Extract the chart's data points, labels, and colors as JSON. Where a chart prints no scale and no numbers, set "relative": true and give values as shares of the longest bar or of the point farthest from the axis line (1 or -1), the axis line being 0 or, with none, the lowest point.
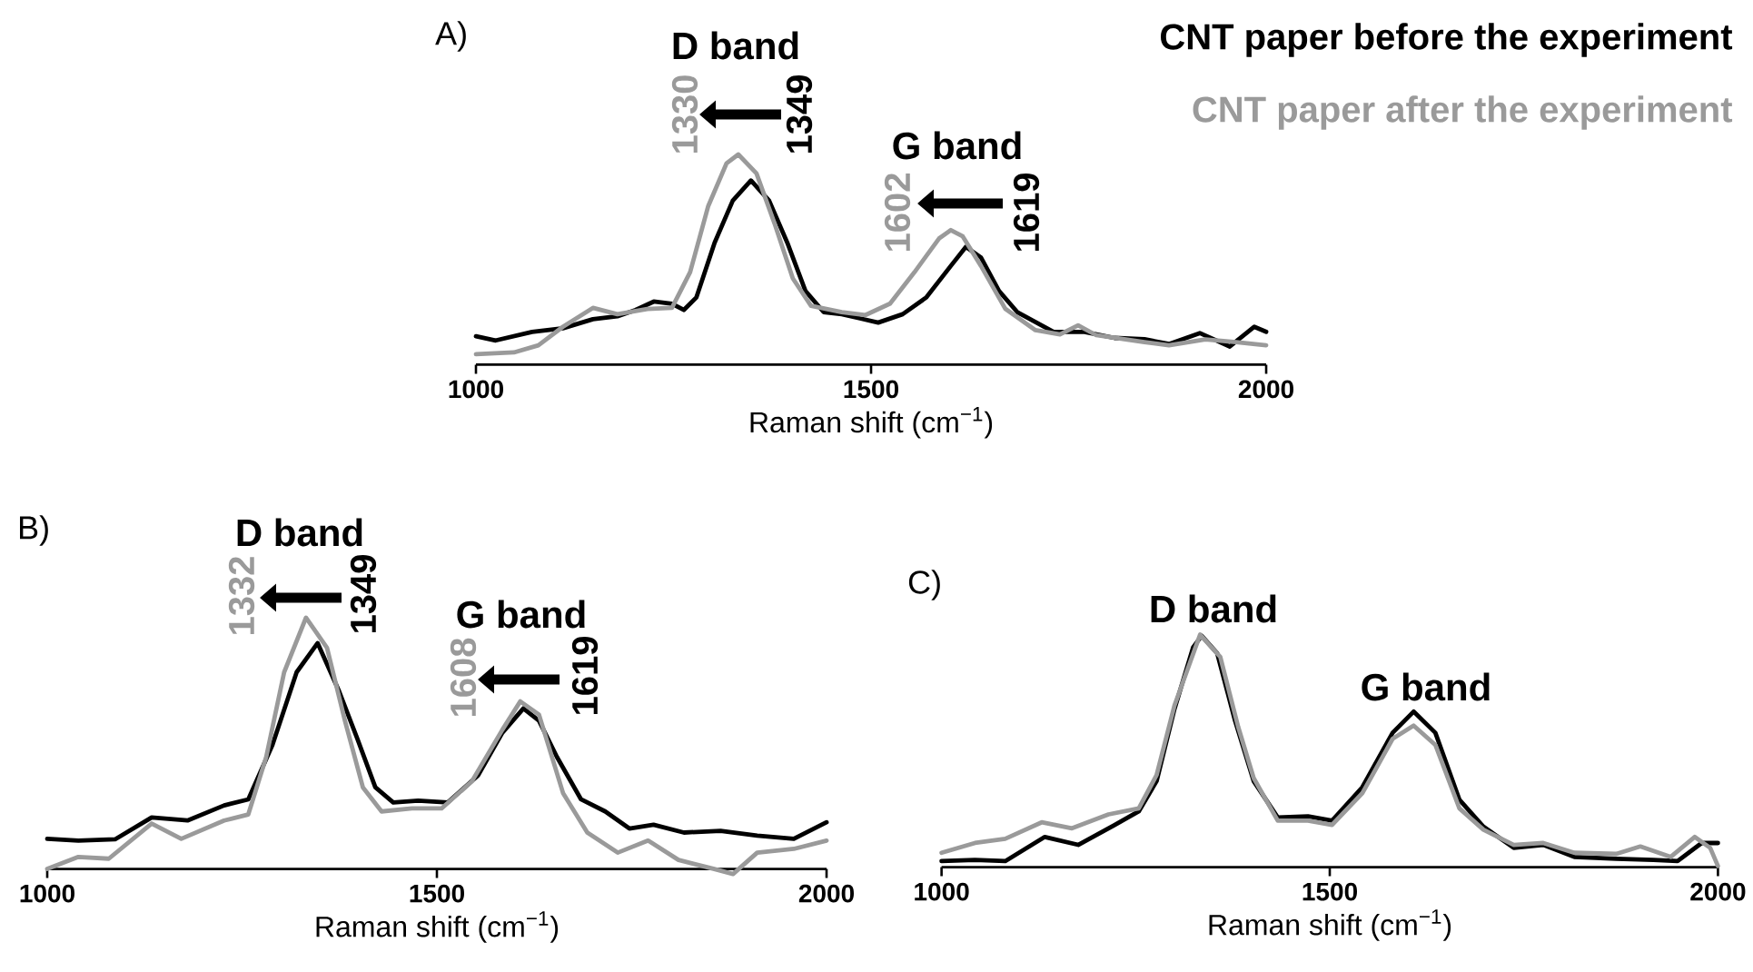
{
  "chart_data": [
    {
      "type": "line",
      "title": "A)",
      "xlabel": "Raman shift (cm$^{−1}$)",
      "xlim": [
        1000,
        2000
      ],
      "xticks": [
        1000,
        1500,
        2000
      ],
      "relative": true,
      "legend": "top right",
      "annotations": [
        "D band",
        "1330",
        "1349",
        "G band",
        "1602",
        "1619"
      ],
      "series": [
        {
          "name": "CNT paper before the experiment",
          "color": "#000000",
          "x": [
            1000,
            1025,
            1071,
            1110,
            1148,
            1179,
            1202,
            1225,
            1248,
            1263,
            1279,
            1302,
            1325,
            1348,
            1371,
            1394,
            1417,
            1440,
            1463,
            1486,
            1509,
            1540,
            1570,
            1601,
            1620,
            1639,
            1662,
            1685,
            1731,
            1770,
            1808,
            1846,
            1877,
            1916,
            1954,
            1985,
            2000
          ],
          "values": [
            0.135,
            0.115,
            0.156,
            0.173,
            0.216,
            0.23,
            0.26,
            0.3,
            0.29,
            0.26,
            0.32,
            0.58,
            0.78,
            0.876,
            0.78,
            0.58,
            0.35,
            0.25,
            0.24,
            0.22,
            0.2,
            0.24,
            0.32,
            0.47,
            0.56,
            0.51,
            0.35,
            0.25,
            0.156,
            0.156,
            0.127,
            0.121,
            0.098,
            0.15,
            0.086,
            0.18,
            0.156
          ]
        },
        {
          "name": "CNT paper after the experiment",
          "color": "#9a9a9a",
          "x": [
            1000,
            1048,
            1079,
            1110,
            1148,
            1179,
            1217,
            1248,
            1271,
            1294,
            1317,
            1332,
            1355,
            1378,
            1401,
            1424,
            1463,
            1493,
            1524,
            1555,
            1586,
            1601,
            1616,
            1639,
            1670,
            1708,
            1739,
            1762,
            1785,
            1846,
            1877,
            1923,
            1962,
            2000
          ],
          "values": [
            0.05,
            0.058,
            0.092,
            0.18,
            0.27,
            0.24,
            0.265,
            0.27,
            0.44,
            0.755,
            0.957,
            1.0,
            0.91,
            0.67,
            0.41,
            0.28,
            0.25,
            0.236,
            0.29,
            0.44,
            0.6,
            0.64,
            0.61,
            0.47,
            0.265,
            0.164,
            0.144,
            0.187,
            0.14,
            0.107,
            0.092,
            0.12,
            0.107,
            0.092
          ]
        }
      ]
    },
    {
      "type": "line",
      "title": "B)",
      "xlabel": "Raman shift (cm$^{−1}$)",
      "xlim": [
        1000,
        2000
      ],
      "xticks": [
        1000,
        1500,
        2000
      ],
      "relative": true,
      "annotations": [
        "D band",
        "1332",
        "1349",
        "G band",
        "1608",
        "1619"
      ],
      "series": [
        {
          "color": "#000000",
          "x": [
            1000,
            1040,
            1087,
            1134,
            1180,
            1227,
            1258,
            1289,
            1320,
            1347,
            1374,
            1398,
            1421,
            1444,
            1476,
            1514,
            1553,
            1584,
            1611,
            1631,
            1654,
            1685,
            1716,
            1747,
            1778,
            1817,
            1864,
            1911,
            1958,
            2000
          ],
          "values": [
            0.12,
            0.113,
            0.118,
            0.205,
            0.193,
            0.253,
            0.277,
            0.494,
            0.783,
            0.899,
            0.711,
            0.518,
            0.325,
            0.265,
            0.272,
            0.265,
            0.373,
            0.542,
            0.639,
            0.59,
            0.446,
            0.277,
            0.229,
            0.161,
            0.176,
            0.145,
            0.152,
            0.133,
            0.12,
            0.186
          ]
        },
        {
          "color": "#9a9a9a",
          "x": [
            1000,
            1040,
            1079,
            1134,
            1172,
            1227,
            1258,
            1281,
            1304,
            1332,
            1359,
            1382,
            1405,
            1429,
            1468,
            1506,
            1545,
            1584,
            1607,
            1631,
            1662,
            1693,
            1732,
            1771,
            1810,
            1856,
            1880,
            1911,
            1958,
            2000
          ],
          "values": [
            0.0,
            0.048,
            0.041,
            0.181,
            0.12,
            0.193,
            0.217,
            0.446,
            0.783,
            1.0,
            0.88,
            0.59,
            0.325,
            0.229,
            0.241,
            0.241,
            0.349,
            0.554,
            0.667,
            0.614,
            0.301,
            0.145,
            0.065,
            0.113,
            0.036,
            0.0,
            -0.02,
            0.065,
            0.08,
            0.113
          ]
        }
      ]
    },
    {
      "type": "line",
      "title": "C)",
      "xlabel": "Raman shift (cm$^{−1}$)",
      "xlim": [
        1000,
        2000
      ],
      "xticks": [
        1000,
        1500,
        2000
      ],
      "relative": true,
      "annotations": [
        "D band",
        "G band"
      ],
      "series": [
        {
          "color": "#000000",
          "x": [
            1000,
            1043,
            1082,
            1133,
            1176,
            1222,
            1254,
            1277,
            1300,
            1324,
            1335,
            1355,
            1378,
            1402,
            1433,
            1472,
            1503,
            1542,
            1581,
            1608,
            1636,
            1667,
            1698,
            1737,
            1775,
            1815,
            1869,
            1917,
            1948,
            1979,
            2000
          ],
          "values": [
            0.026,
            0.031,
            0.026,
            0.13,
            0.096,
            0.18,
            0.24,
            0.37,
            0.68,
            0.945,
            0.995,
            0.92,
            0.63,
            0.37,
            0.214,
            0.219,
            0.2,
            0.344,
            0.578,
            0.669,
            0.578,
            0.29,
            0.174,
            0.083,
            0.096,
            0.044,
            0.036,
            0.031,
            0.026,
            0.104,
            0.104
          ]
        },
        {
          "color": "#9a9a9a",
          "x": [
            1000,
            1043,
            1082,
            1129,
            1168,
            1215,
            1254,
            1277,
            1300,
            1333,
            1359,
            1382,
            1402,
            1433,
            1472,
            1503,
            1542,
            1581,
            1608,
            1636,
            1667,
            1698,
            1737,
            1775,
            1815,
            1869,
            1900,
            1939,
            1970,
            1990,
            2000
          ],
          "values": [
            0.062,
            0.104,
            0.122,
            0.193,
            0.167,
            0.227,
            0.253,
            0.396,
            0.695,
            1.0,
            0.904,
            0.604,
            0.383,
            0.2,
            0.2,
            0.182,
            0.318,
            0.552,
            0.609,
            0.526,
            0.253,
            0.161,
            0.096,
            0.104,
            0.062,
            0.057,
            0.089,
            0.044,
            0.13,
            0.083,
            0.005
          ]
        }
      ]
    }
  ]
}
